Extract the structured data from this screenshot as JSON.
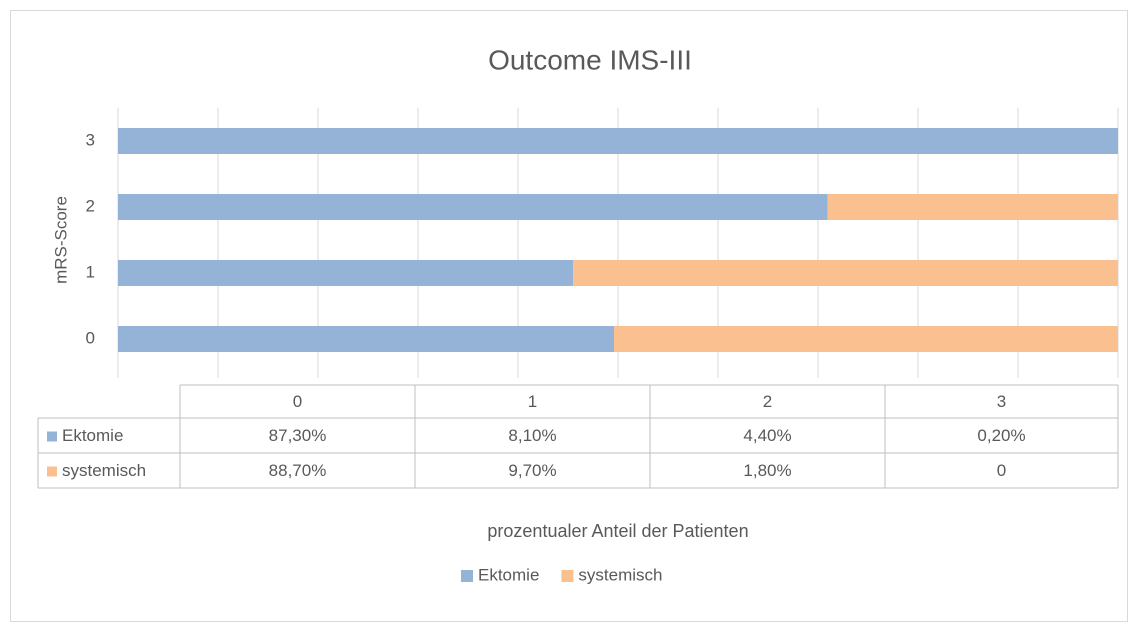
{
  "chart_data": {
    "type": "bar",
    "orientation": "horizontal",
    "stack": "percent",
    "title": "Outcome IMS-III",
    "y_label": "mRS-Score",
    "x_label": "prozentualer Anteil der Patienten",
    "categories": [
      "0",
      "1",
      "2",
      "3"
    ],
    "series": [
      {
        "name": "Ektomie",
        "color": "#95b3d7",
        "values": [
          87.3,
          8.1,
          4.4,
          0.2
        ],
        "value_labels": [
          "87,30%",
          "8,10%",
          "4,40%",
          "0,20%"
        ]
      },
      {
        "name": "systemisch",
        "color": "#fac090",
        "values": [
          88.7,
          9.7,
          1.8,
          0
        ],
        "value_labels": [
          "88,70%",
          "9,70%",
          "1,80%",
          "0"
        ]
      }
    ],
    "xlim": [
      0,
      100
    ],
    "xticks": [
      0,
      10,
      20,
      30,
      40,
      50,
      60,
      70,
      80,
      90,
      100
    ],
    "xtick_labels": false,
    "grid": true,
    "data_table": true,
    "legend": "bottom"
  }
}
